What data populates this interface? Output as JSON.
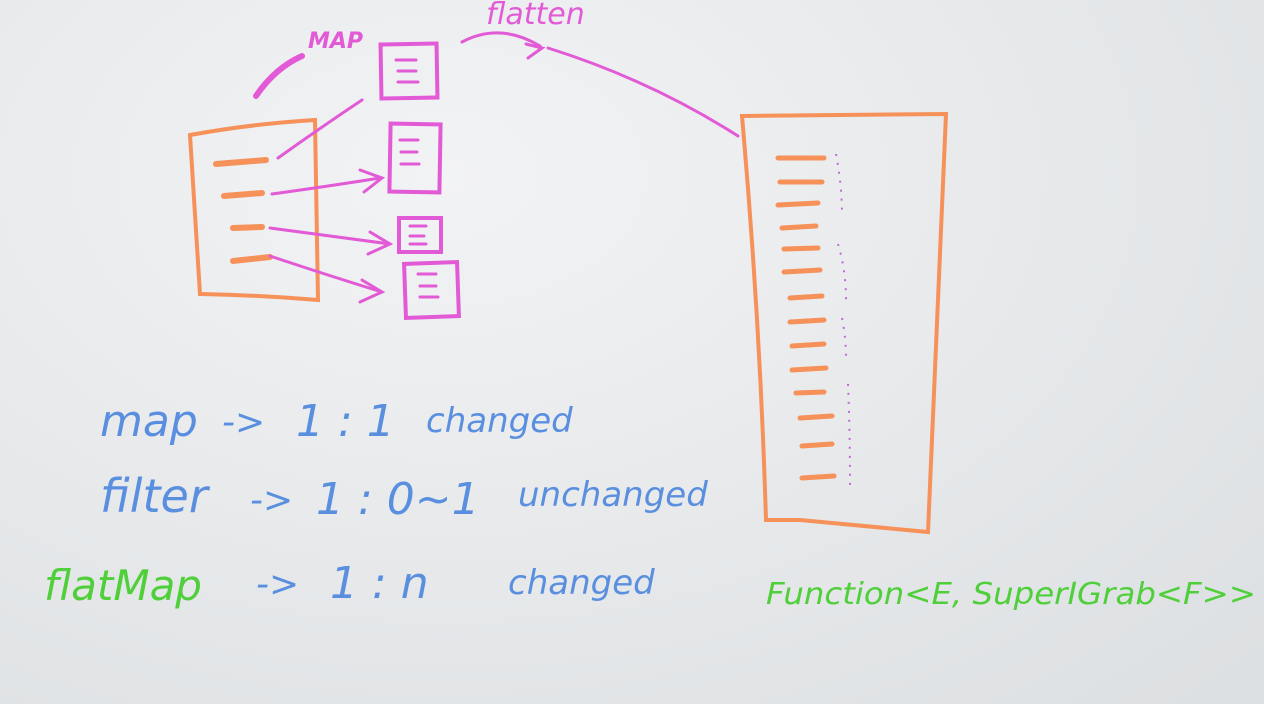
{
  "labels": {
    "map_top": "MAP",
    "flatten": "flatten"
  },
  "notes": [
    {
      "op": "map",
      "arrow": "->",
      "ratio": "1 : 1",
      "effect": "changed"
    },
    {
      "op": "filter",
      "arrow": "->",
      "ratio": "1 : 0~1",
      "effect": "unchanged"
    },
    {
      "op": "flatMap",
      "arrow": "->",
      "ratio": "1 : n",
      "effect": "changed"
    }
  ],
  "signature": "Function<E, SuperIGrab<F>>",
  "colors": {
    "orange": "#f6915a",
    "magenta": "#e25ad6",
    "blue": "#5a8fe0",
    "green": "#4fcf3a"
  }
}
